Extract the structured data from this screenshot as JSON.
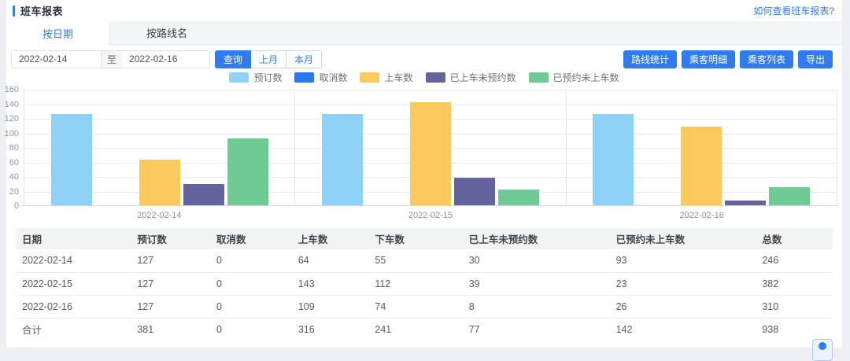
{
  "page": {
    "title": "班车报表",
    "help_link": "如何查看班车报表?"
  },
  "tabs": [
    {
      "label": "按日期",
      "active": true
    },
    {
      "label": "按路线名",
      "active": false
    }
  ],
  "filters": {
    "start_date": "2022-02-14",
    "to_label": "至",
    "end_date": "2022-02-16",
    "query_button": "查询",
    "prev_month_button": "上月",
    "current_month_button": "本月"
  },
  "actions": [
    "路线统计",
    "乘客明细",
    "乘客列表",
    "导出"
  ],
  "colors": {
    "primary": "#2e7cf0",
    "series_booked": "#8ed3f7",
    "series_cancelled": "#2d77ee",
    "series_boarded": "#fbc95c",
    "series_boarded_no_reservation": "#65639e",
    "series_reserved_not_boarded": "#6fcb93"
  },
  "chart_data": {
    "type": "bar",
    "categories": [
      "2022-02-14",
      "2022-02-15",
      "2022-02-16"
    ],
    "series": [
      {
        "name": "预订数",
        "color": "#8ed3f7",
        "values": [
          127,
          127,
          127
        ]
      },
      {
        "name": "取消数",
        "color": "#2d77ee",
        "values": [
          0,
          0,
          0
        ]
      },
      {
        "name": "上车数",
        "color": "#fbc95c",
        "values": [
          64,
          143,
          109
        ]
      },
      {
        "name": "已上车未预约数",
        "color": "#65639e",
        "values": [
          30,
          39,
          8
        ]
      },
      {
        "name": "已预约未上车数",
        "color": "#6fcb93",
        "values": [
          93,
          23,
          26
        ]
      }
    ],
    "title": "",
    "xlabel": "",
    "ylabel": "",
    "ylim": [
      0,
      160
    ],
    "yticks": [
      0,
      20,
      40,
      60,
      80,
      100,
      120,
      140,
      160
    ],
    "grid": true,
    "legend_position": "top"
  },
  "table": {
    "headers": [
      "日期",
      "预订数",
      "取消数",
      "上车数",
      "下车数",
      "已上车未预约数",
      "已预约未上车数",
      "总数"
    ],
    "col_widths": [
      "14.1%",
      "9.7%",
      "10.0%",
      "9.4%",
      "11.5%",
      "18.0%",
      "17.9%",
      "9.4%"
    ],
    "rows": [
      {
        "date": "2022-02-14",
        "values": [
          "127",
          "0",
          "64",
          "55",
          "30",
          "93",
          "246"
        ]
      },
      {
        "date": "2022-02-15",
        "values": [
          "127",
          "0",
          "143",
          "112",
          "39",
          "23",
          "382"
        ]
      },
      {
        "date": "2022-02-16",
        "values": [
          "127",
          "0",
          "109",
          "74",
          "8",
          "26",
          "310"
        ]
      },
      {
        "date": "合计",
        "values": [
          "381",
          "0",
          "316",
          "241",
          "77",
          "142",
          "938"
        ]
      }
    ]
  }
}
